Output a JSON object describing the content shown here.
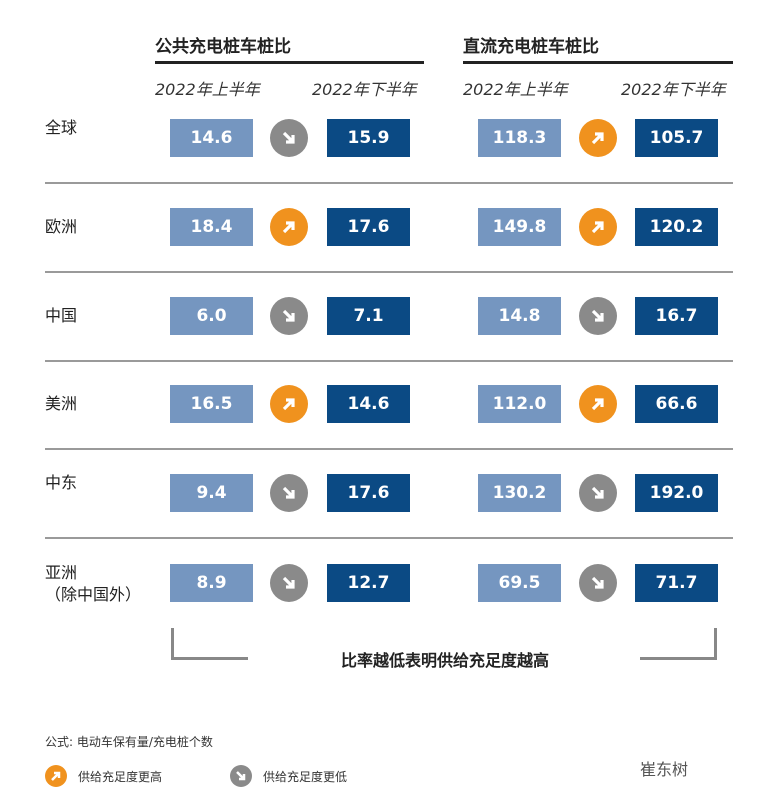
{
  "chart_data": {
    "type": "table",
    "groups": [
      {
        "title": "公共充电桩车桩比",
        "columns": [
          "2022年上半年",
          "2022年下半年"
        ]
      },
      {
        "title": "直流充电桩车桩比",
        "columns": [
          "2022年上半年",
          "2022年下半年"
        ]
      }
    ],
    "rows": [
      {
        "region": [
          "全球"
        ],
        "public": [
          14.6,
          15.9
        ],
        "public_trend": "lower",
        "dc": [
          118.3,
          105.7
        ],
        "dc_trend": "higher"
      },
      {
        "region": [
          "欧洲"
        ],
        "public": [
          18.4,
          17.6
        ],
        "public_trend": "higher",
        "dc": [
          149.8,
          120.2
        ],
        "dc_trend": "higher"
      },
      {
        "region": [
          "中国"
        ],
        "public": [
          6.0,
          7.1
        ],
        "public_trend": "lower",
        "dc": [
          14.8,
          16.7
        ],
        "dc_trend": "lower"
      },
      {
        "region": [
          "美洲"
        ],
        "public": [
          16.5,
          14.6
        ],
        "public_trend": "higher",
        "dc": [
          112.0,
          66.6
        ],
        "dc_trend": "higher"
      },
      {
        "region": [
          "中东"
        ],
        "public": [
          9.4,
          17.6
        ],
        "public_trend": "lower",
        "dc": [
          130.2,
          192.0
        ],
        "dc_trend": "lower"
      },
      {
        "region": [
          "亚洲",
          "（除中国外）"
        ],
        "public": [
          8.9,
          12.7
        ],
        "public_trend": "lower",
        "dc": [
          69.5,
          71.7
        ],
        "dc_trend": "lower"
      }
    ],
    "note": "比率越低表明供给充足度越高"
  },
  "footer": {
    "formula": "公式: 电动车保有量/充电桩个数",
    "legend_higher": "供给充足度更高",
    "legend_lower": "供给充足度更低",
    "watermark": "崔东树"
  },
  "colors": {
    "light": "#7596c0",
    "dark": "#0b4a84",
    "higher": "#f0921e",
    "lower": "#8a8a8a"
  }
}
